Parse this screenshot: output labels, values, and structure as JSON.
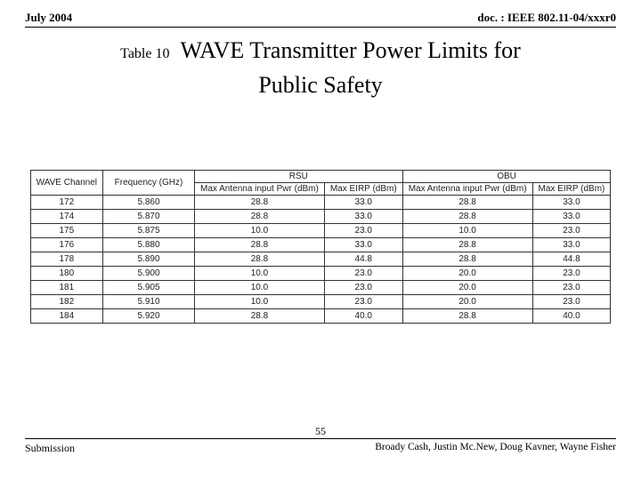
{
  "header": {
    "date": "July 2004",
    "doc_ref": "doc. : IEEE 802.11-04/xxxr0"
  },
  "title": {
    "caption": "Table 10",
    "line1": "WAVE Transmitter Power Limits for",
    "line2": "Public Safety"
  },
  "table": {
    "type": "table",
    "group_headers": [
      "RSU",
      "OBU"
    ],
    "column_headers": {
      "wave": "WAVE Channel",
      "freq": "Frequency (GHz)",
      "max_pwr": "Max Antenna input Pwr (dBm)",
      "max_eirp": "Max EIRP (dBm)"
    },
    "rows": [
      {
        "ch": "172",
        "freq": "5.860",
        "rsu_pwr": "28.8",
        "rsu_eirp": "33.0",
        "obu_pwr": "28.8",
        "obu_eirp": "33.0"
      },
      {
        "ch": "174",
        "freq": "5.870",
        "rsu_pwr": "28.8",
        "rsu_eirp": "33.0",
        "obu_pwr": "28.8",
        "obu_eirp": "33.0"
      },
      {
        "ch": "175",
        "freq": "5.875",
        "rsu_pwr": "10.0",
        "rsu_eirp": "23.0",
        "obu_pwr": "10.0",
        "obu_eirp": "23.0"
      },
      {
        "ch": "176",
        "freq": "5.880",
        "rsu_pwr": "28.8",
        "rsu_eirp": "33.0",
        "obu_pwr": "28.8",
        "obu_eirp": "33.0"
      },
      {
        "ch": "178",
        "freq": "5.890",
        "rsu_pwr": "28.8",
        "rsu_eirp": "44.8",
        "obu_pwr": "28.8",
        "obu_eirp": "44.8"
      },
      {
        "ch": "180",
        "freq": "5.900",
        "rsu_pwr": "10.0",
        "rsu_eirp": "23.0",
        "obu_pwr": "20.0",
        "obu_eirp": "23.0"
      },
      {
        "ch": "181",
        "freq": "5.905",
        "rsu_pwr": "10.0",
        "rsu_eirp": "23.0",
        "obu_pwr": "20.0",
        "obu_eirp": "23.0"
      },
      {
        "ch": "182",
        "freq": "5.910",
        "rsu_pwr": "10.0",
        "rsu_eirp": "23.0",
        "obu_pwr": "20.0",
        "obu_eirp": "23.0"
      },
      {
        "ch": "184",
        "freq": "5.920",
        "rsu_pwr": "28.8",
        "rsu_eirp": "40.0",
        "obu_pwr": "28.8",
        "obu_eirp": "40.0"
      }
    ]
  },
  "footer": {
    "left": "Submission",
    "page_number": "55",
    "right": "Broady Cash, Justin Mc.New, Doug Kavner, Wayne Fisher"
  }
}
